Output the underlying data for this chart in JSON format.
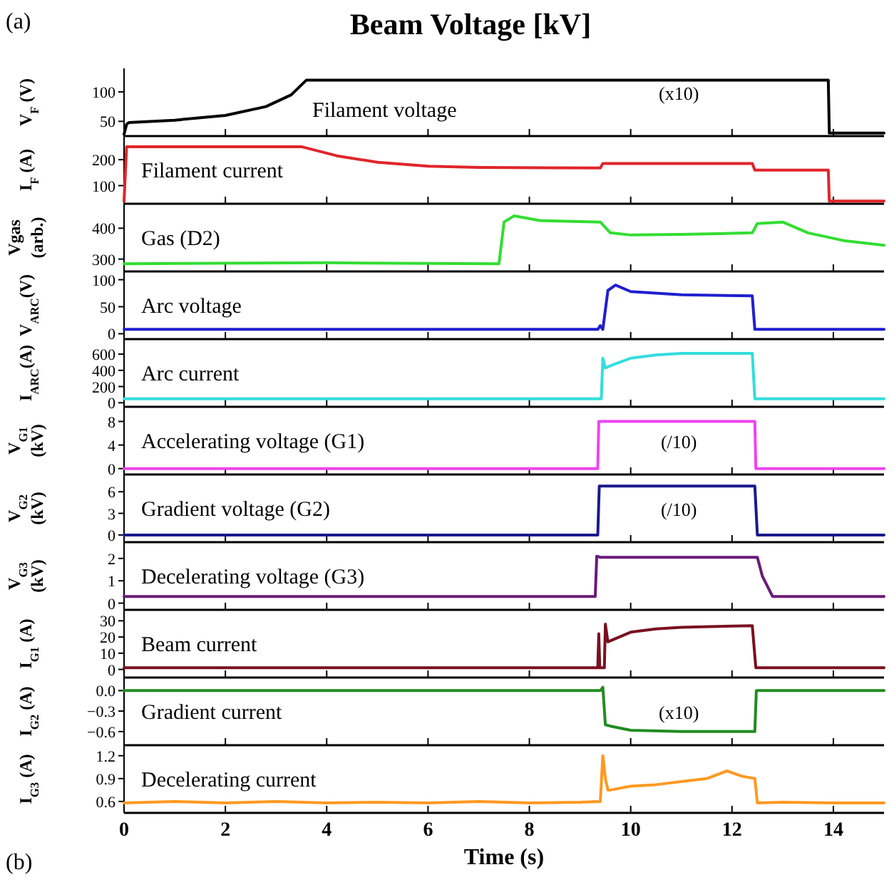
{
  "chart_data": [
    {
      "type": "line",
      "title": "Beam Voltage [kV]",
      "ylabel": "V$_{F}$ (V)",
      "annotations": [
        "(a)",
        "(x10)"
      ],
      "xlim": [
        0,
        15
      ],
      "ylim": [
        25,
        135
      ],
      "yticks": [
        50,
        100
      ],
      "tick_labels": "y",
      "xticks": [
        {
          "value": 0,
          "label": null
        },
        {
          "value": 2,
          "label": null
        },
        {
          "value": 4,
          "label": null
        },
        {
          "value": 6,
          "label": null
        },
        {
          "value": 8,
          "label": null
        },
        {
          "value": 10,
          "label": null
        },
        {
          "value": 12,
          "label": null
        },
        {
          "value": 14,
          "label": null
        }
      ],
      "series": [
        {
          "name": "Filament voltage",
          "color": "#000000",
          "x": [
            0,
            0.05,
            0.1,
            1,
            2,
            2.8,
            3.3,
            3.6,
            13.9,
            13.92,
            15
          ],
          "values": [
            28,
            45,
            48,
            52,
            60,
            75,
            95,
            120,
            120,
            30,
            30
          ]
        }
      ]
    },
    {
      "type": "line",
      "ylabel": "I$_{F}$ (A)",
      "xlim": [
        0,
        15
      ],
      "ylim": [
        30,
        280
      ],
      "yticks": [
        100,
        200
      ],
      "tick_labels": "y",
      "xticks": [
        {
          "value": 0,
          "label": null
        },
        {
          "value": 2,
          "label": null
        },
        {
          "value": 4,
          "label": null
        },
        {
          "value": 6,
          "label": null
        },
        {
          "value": 8,
          "label": null
        },
        {
          "value": 10,
          "label": null
        },
        {
          "value": 12,
          "label": null
        },
        {
          "value": 14,
          "label": null
        }
      ],
      "series": [
        {
          "name": "Filament current",
          "color": "#e0252a",
          "x": [
            0,
            0.05,
            3.5,
            4.2,
            5,
            6,
            7,
            9.4,
            9.45,
            12.4,
            12.45,
            13.9,
            13.92,
            15
          ],
          "values": [
            40,
            250,
            250,
            215,
            190,
            175,
            170,
            168,
            185,
            185,
            160,
            160,
            40,
            40
          ]
        }
      ]
    },
    {
      "type": "line",
      "ylabel": "Vgas (arb.)",
      "xlim": [
        0,
        15
      ],
      "ylim": [
        260,
        470
      ],
      "yticks": [
        300,
        400
      ],
      "tick_labels": "y",
      "xticks": [
        {
          "value": 0,
          "label": null
        },
        {
          "value": 2,
          "label": null
        },
        {
          "value": 4,
          "label": null
        },
        {
          "value": 6,
          "label": null
        },
        {
          "value": 8,
          "label": null
        },
        {
          "value": 10,
          "label": null
        },
        {
          "value": 12,
          "label": null
        },
        {
          "value": 14,
          "label": null
        }
      ],
      "series": [
        {
          "name": "Gas (D2)",
          "color": "#33dd33",
          "x": [
            0,
            4,
            7.4,
            7.5,
            7.7,
            8.2,
            9.4,
            9.6,
            10,
            11,
            12.4,
            12.5,
            13,
            13.5,
            14.2,
            15
          ],
          "values": [
            285,
            288,
            285,
            420,
            440,
            425,
            420,
            385,
            378,
            380,
            385,
            415,
            420,
            385,
            360,
            345
          ]
        }
      ]
    },
    {
      "type": "line",
      "ylabel": "V$_{ARC}$(V)",
      "xlim": [
        0,
        15
      ],
      "ylim": [
        -10,
        110
      ],
      "yticks": [
        0,
        50,
        100
      ],
      "tick_labels": "y",
      "xticks": [
        {
          "value": 0,
          "label": null
        },
        {
          "value": 2,
          "label": null
        },
        {
          "value": 4,
          "label": null
        },
        {
          "value": 6,
          "label": null
        },
        {
          "value": 8,
          "label": null
        },
        {
          "value": 10,
          "label": null
        },
        {
          "value": 12,
          "label": null
        },
        {
          "value": 14,
          "label": null
        }
      ],
      "series": [
        {
          "name": "Arc voltage",
          "color": "#1f1fd0",
          "x": [
            0,
            9.35,
            9.4,
            9.45,
            9.55,
            9.7,
            10,
            11,
            12.4,
            12.45,
            15
          ],
          "values": [
            8,
            8,
            15,
            8,
            80,
            90,
            78,
            72,
            70,
            8,
            8
          ]
        }
      ]
    },
    {
      "type": "line",
      "ylabel": "I$_{ARC}$(A)",
      "xlim": [
        0,
        15
      ],
      "ylim": [
        -50,
        750
      ],
      "yticks": [
        0,
        200,
        400,
        600
      ],
      "tick_labels": "y",
      "xticks": [
        {
          "value": 0,
          "label": null
        },
        {
          "value": 2,
          "label": null
        },
        {
          "value": 4,
          "label": null
        },
        {
          "value": 6,
          "label": null
        },
        {
          "value": 8,
          "label": null
        },
        {
          "value": 10,
          "label": null
        },
        {
          "value": 12,
          "label": null
        },
        {
          "value": 14,
          "label": null
        }
      ],
      "series": [
        {
          "name": "Arc current",
          "color": "#33dddd",
          "x": [
            0,
            9.42,
            9.45,
            9.5,
            9.7,
            10,
            10.5,
            11,
            12.4,
            12.45,
            15
          ],
          "values": [
            50,
            50,
            550,
            430,
            480,
            550,
            590,
            610,
            610,
            50,
            50
          ]
        }
      ]
    },
    {
      "type": "line",
      "ylabel": "V$_{G1}$ (kV)",
      "annotations": [
        "(/10)"
      ],
      "xlim": [
        0,
        15
      ],
      "ylim": [
        -1,
        10
      ],
      "yticks": [
        0,
        4,
        8
      ],
      "tick_labels": "y",
      "xticks": [
        {
          "value": 0,
          "label": null
        },
        {
          "value": 2,
          "label": null
        },
        {
          "value": 4,
          "label": null
        },
        {
          "value": 6,
          "label": null
        },
        {
          "value": 8,
          "label": null
        },
        {
          "value": 10,
          "label": null
        },
        {
          "value": 12,
          "label": null
        },
        {
          "value": 14,
          "label": null
        }
      ],
      "series": [
        {
          "name": "Accelerating voltage (G1)",
          "color": "#ee44ee",
          "x": [
            0,
            9.35,
            9.37,
            12.45,
            12.47,
            15
          ],
          "values": [
            0,
            0,
            8,
            8,
            0,
            0
          ]
        }
      ]
    },
    {
      "type": "line",
      "ylabel": "V$_{G2}$ (kV)",
      "annotations": [
        "(/10)"
      ],
      "xlim": [
        0,
        15
      ],
      "ylim": [
        -1,
        8
      ],
      "yticks": [
        0,
        3,
        6
      ],
      "tick_labels": "y",
      "xticks": [
        {
          "value": 0,
          "label": null
        },
        {
          "value": 2,
          "label": null
        },
        {
          "value": 4,
          "label": null
        },
        {
          "value": 6,
          "label": null
        },
        {
          "value": 8,
          "label": null
        },
        {
          "value": 10,
          "label": null
        },
        {
          "value": 12,
          "label": null
        },
        {
          "value": 14,
          "label": null
        }
      ],
      "series": [
        {
          "name": "Gradient voltage (G2)",
          "color": "#1a1a8c",
          "x": [
            0,
            9.35,
            9.38,
            12.45,
            12.5,
            15
          ],
          "values": [
            0,
            0,
            6.8,
            6.8,
            0,
            0
          ]
        }
      ]
    },
    {
      "type": "line",
      "ylabel": "V$_{G3}$ (kV)",
      "xlim": [
        0,
        15
      ],
      "ylim": [
        -0.3,
        2.6
      ],
      "yticks": [
        0,
        1,
        2
      ],
      "tick_labels": "y",
      "xticks": [
        {
          "value": 0,
          "label": null
        },
        {
          "value": 2,
          "label": null
        },
        {
          "value": 4,
          "label": null
        },
        {
          "value": 6,
          "label": null
        },
        {
          "value": 8,
          "label": null
        },
        {
          "value": 10,
          "label": null
        },
        {
          "value": 12,
          "label": null
        },
        {
          "value": 14,
          "label": null
        }
      ],
      "series": [
        {
          "name": "Decelerating voltage (G3)",
          "color": "#6a1a7a",
          "x": [
            0,
            9.3,
            9.33,
            9.4,
            12.5,
            12.6,
            12.8,
            15
          ],
          "values": [
            0.3,
            0.3,
            2.1,
            2.05,
            2.05,
            1.2,
            0.3,
            0.3
          ]
        }
      ]
    },
    {
      "type": "line",
      "ylabel": "I$_{G1}$ (A)",
      "xlim": [
        0,
        15
      ],
      "ylim": [
        -5,
        35
      ],
      "yticks": [
        0,
        10,
        20,
        30
      ],
      "tick_labels": "y",
      "xticks": [
        {
          "value": 0,
          "label": null
        },
        {
          "value": 2,
          "label": null
        },
        {
          "value": 4,
          "label": null
        },
        {
          "value": 6,
          "label": null
        },
        {
          "value": 8,
          "label": null
        },
        {
          "value": 10,
          "label": null
        },
        {
          "value": 12,
          "label": null
        },
        {
          "value": 14,
          "label": null
        }
      ],
      "series": [
        {
          "name": "Beam current",
          "color": "#7a1020",
          "x": [
            0,
            9.35,
            9.37,
            9.39,
            9.48,
            9.5,
            9.55,
            9.7,
            10,
            10.5,
            11,
            12.4,
            12.47,
            15
          ],
          "values": [
            1,
            1,
            22,
            1,
            1,
            28,
            17,
            19,
            23,
            25,
            26,
            27,
            1,
            1
          ]
        }
      ]
    },
    {
      "type": "line",
      "ylabel": "I$_{G2}$ (A)",
      "annotations": [
        "(x10)"
      ],
      "xlim": [
        0,
        15
      ],
      "ylim": [
        -0.8,
        0.15
      ],
      "yticks": [
        {
          "value": 0,
          "label": "0.0"
        },
        -0.3,
        -0.6
      ],
      "tick_labels": "y",
      "xticks": [
        {
          "value": 0,
          "label": null
        },
        {
          "value": 2,
          "label": null
        },
        {
          "value": 4,
          "label": null
        },
        {
          "value": 6,
          "label": null
        },
        {
          "value": 8,
          "label": null
        },
        {
          "value": 10,
          "label": null
        },
        {
          "value": 12,
          "label": null
        },
        {
          "value": 14,
          "label": null
        }
      ],
      "series": [
        {
          "name": "Gradient current",
          "color": "#228b22",
          "x": [
            0,
            9.4,
            9.45,
            9.5,
            9.6,
            10,
            11,
            12.45,
            12.48,
            15
          ],
          "values": [
            0,
            0,
            0.05,
            -0.5,
            -0.52,
            -0.58,
            -0.6,
            -0.6,
            0,
            0
          ]
        }
      ]
    },
    {
      "type": "line",
      "ylabel": "I$_{G3}$ (A)",
      "xlabel": "Time (s)",
      "annotations": [
        "(b)"
      ],
      "xlim": [
        0,
        15
      ],
      "ylim": [
        0.45,
        1.3
      ],
      "xticks": [
        0,
        2,
        4,
        6,
        8,
        10,
        12,
        14
      ],
      "yticks": [
        0.6,
        0.9,
        1.2
      ],
      "series": [
        {
          "name": "Decelerating current",
          "color": "#ff9922",
          "x": [
            0,
            1,
            2,
            3,
            4,
            5,
            6,
            7,
            8,
            9,
            9.4,
            9.45,
            9.5,
            9.55,
            9.6,
            10,
            10.5,
            11,
            11.5,
            11.9,
            12.2,
            12.45,
            12.5,
            13,
            14,
            15
          ],
          "values": [
            0.58,
            0.6,
            0.58,
            0.6,
            0.58,
            0.59,
            0.58,
            0.6,
            0.58,
            0.59,
            0.6,
            1.2,
            0.9,
            0.75,
            0.75,
            0.8,
            0.82,
            0.86,
            0.9,
            1.0,
            0.93,
            0.9,
            0.58,
            0.59,
            0.58,
            0.58
          ]
        }
      ]
    }
  ]
}
